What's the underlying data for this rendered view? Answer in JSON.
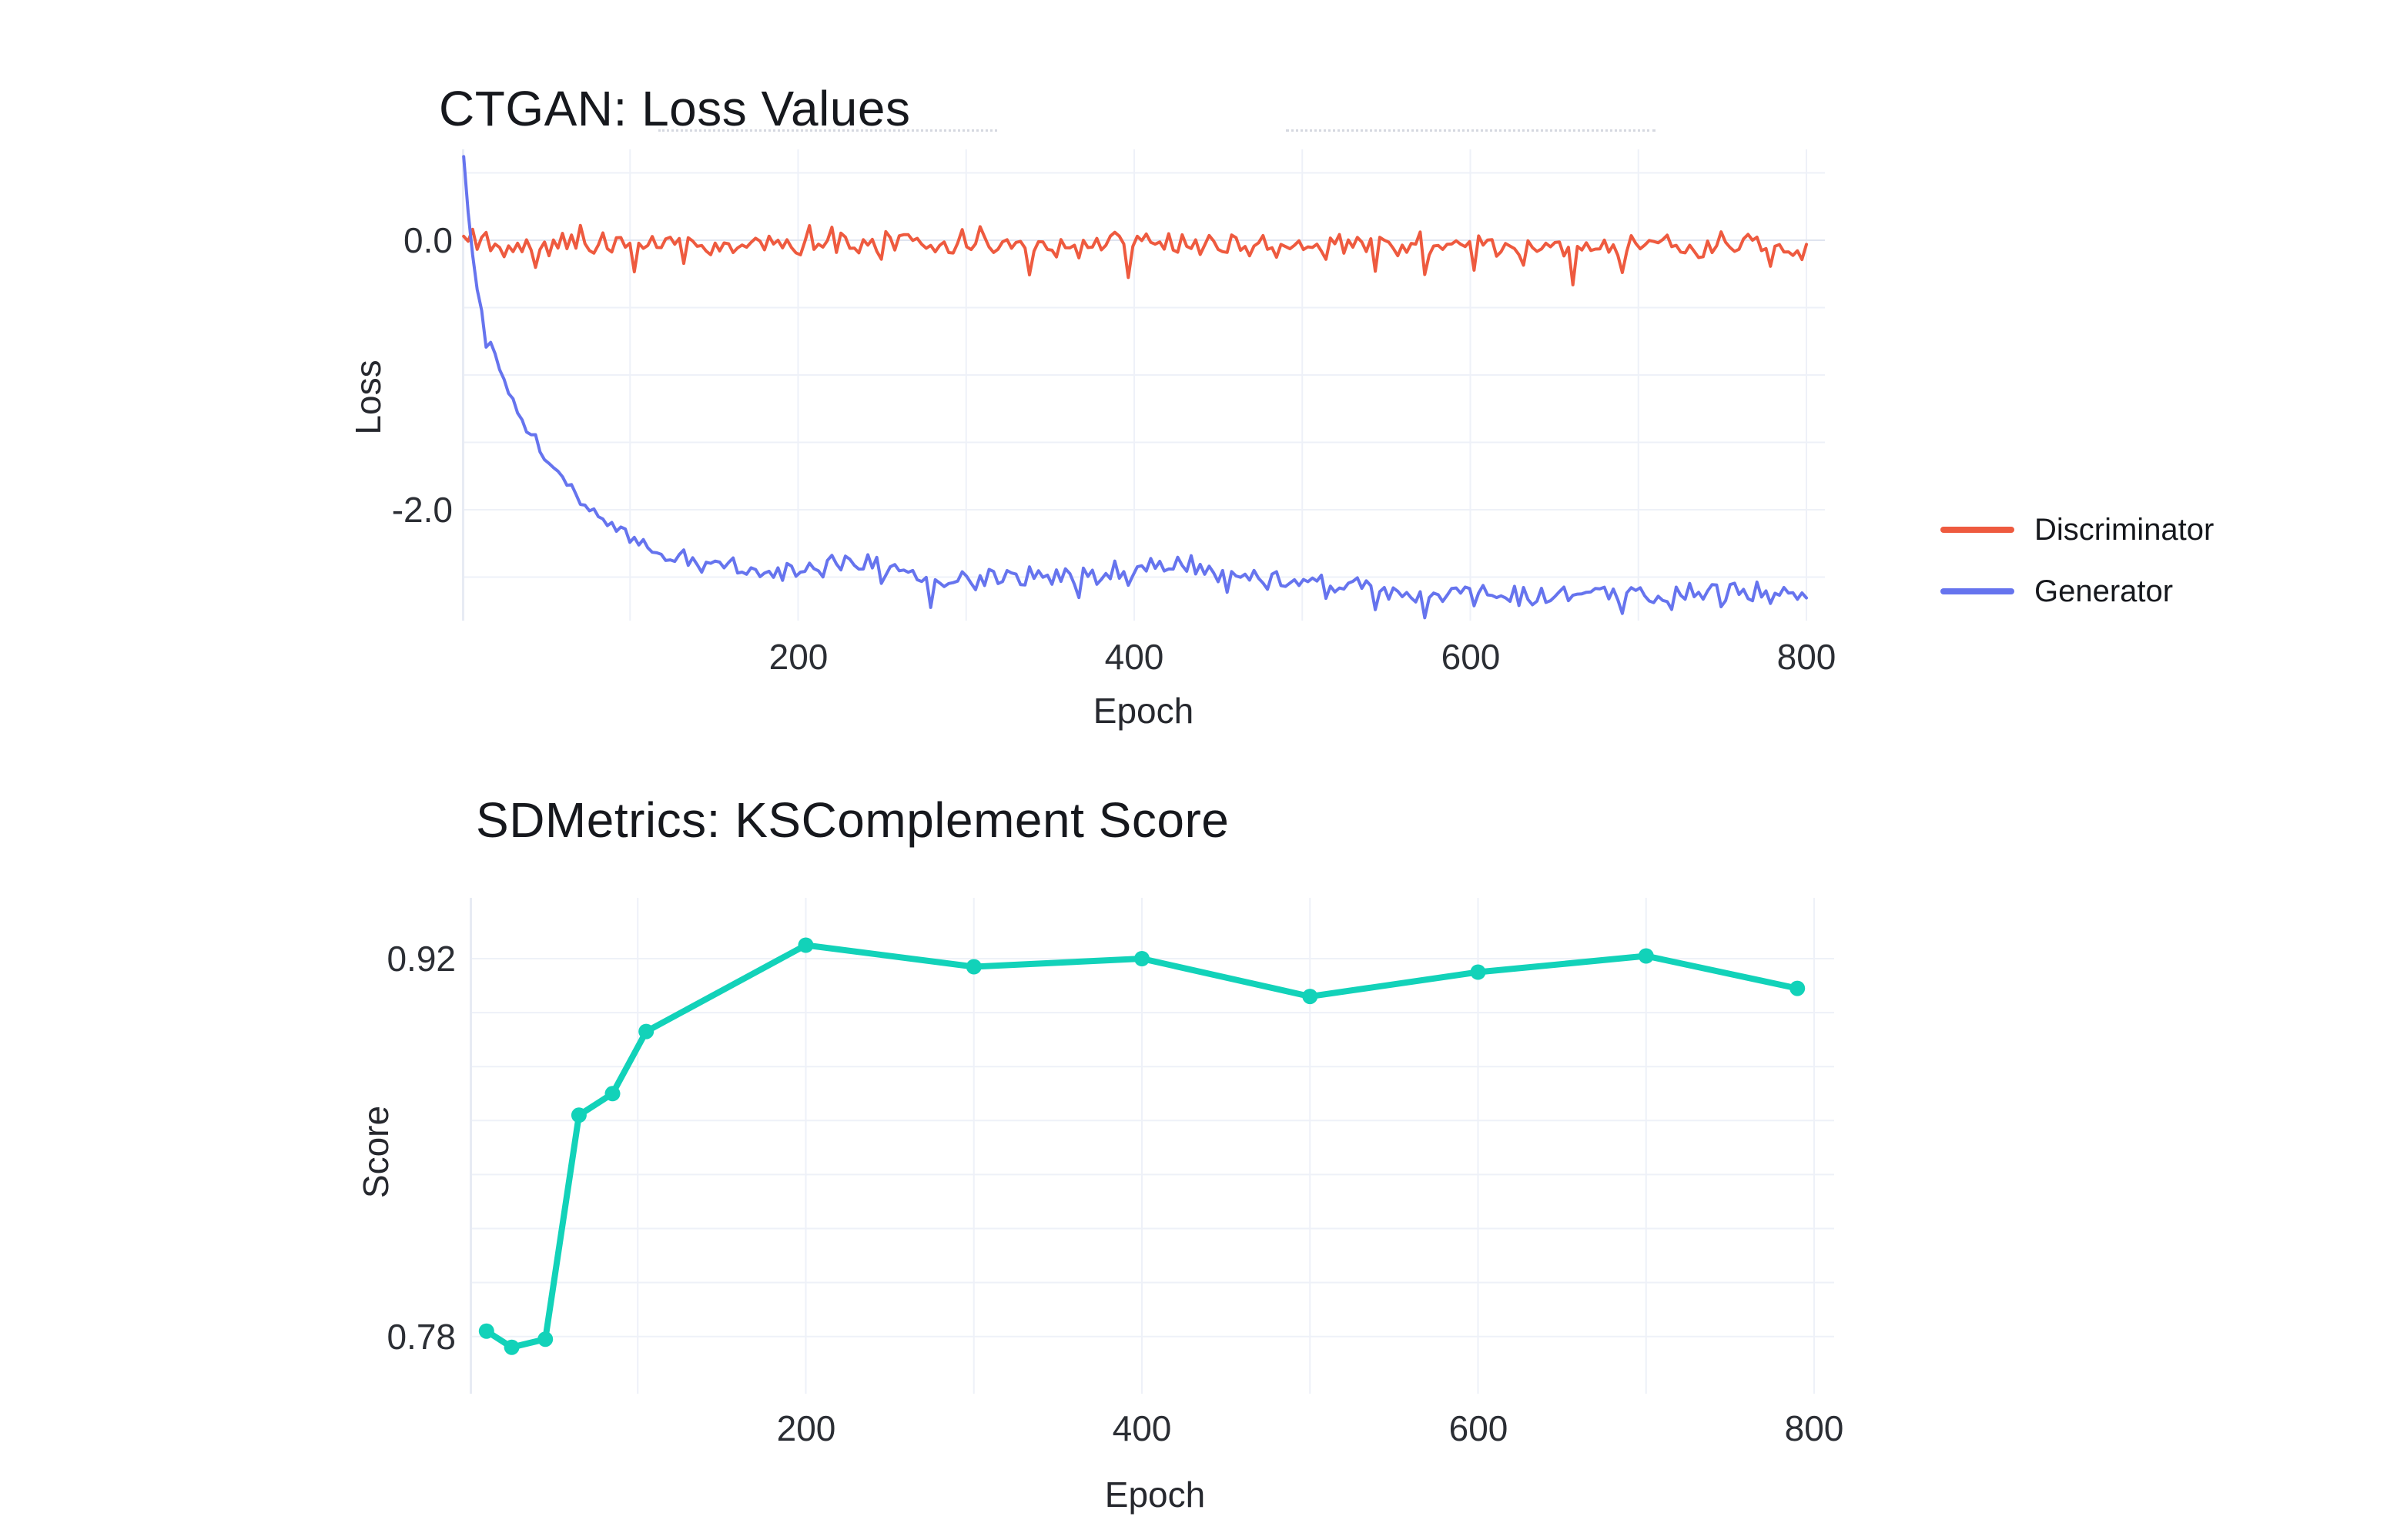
{
  "page": {
    "background": "#ffffff"
  },
  "chart_data": [
    {
      "type": "line",
      "title": "CTGAN: Loss Values",
      "xlabel": "Epoch",
      "ylabel": "Loss",
      "x_tick_labels": [
        "200",
        "400",
        "600",
        "800"
      ],
      "x_tick_values": [
        200,
        400,
        600,
        800
      ],
      "y_tick_labels": [
        "0.0",
        "-2.0"
      ],
      "y_tick_values": [
        0.0,
        -2.0
      ],
      "xlim": [
        0,
        810
      ],
      "ylim": [
        -2.82,
        0.67
      ],
      "x_grid": [
        100,
        200,
        300,
        400,
        500,
        600,
        700,
        800
      ],
      "y_grid": [
        0.5,
        0,
        -0.5,
        -1,
        -1.5,
        -2,
        -2.5
      ],
      "zeroline": 0,
      "grid": true,
      "legend_position": "right",
      "series": [
        {
          "name": "Discriminator",
          "color": "#ee5a3f",
          "style": "noisy-line",
          "trend": [
            [
              1,
              0.05
            ],
            [
              20,
              -0.03
            ],
            [
              400,
              -0.03
            ],
            [
              800,
              -0.05
            ]
          ],
          "noise_amplitude": 0.06,
          "spike_amplitude": 0.2,
          "n_points": 300,
          "seed": 11
        },
        {
          "name": "Generator",
          "color": "#6674ee",
          "style": "noisy-line",
          "trend": [
            [
              1,
              0.62
            ],
            [
              4,
              0.15
            ],
            [
              8,
              -0.3
            ],
            [
              14,
              -0.62
            ],
            [
              20,
              -0.88
            ],
            [
              28,
              -1.12
            ],
            [
              38,
              -1.4
            ],
            [
              48,
              -1.6
            ],
            [
              58,
              -1.74
            ],
            [
              70,
              -1.92
            ],
            [
              80,
              -2.04
            ],
            [
              95,
              -2.14
            ],
            [
              110,
              -2.28
            ],
            [
              130,
              -2.37
            ],
            [
              160,
              -2.44
            ],
            [
              200,
              -2.46
            ],
            [
              240,
              -2.38
            ],
            [
              265,
              -2.48
            ],
            [
              300,
              -2.53
            ],
            [
              340,
              -2.49
            ],
            [
              380,
              -2.51
            ],
            [
              415,
              -2.4
            ],
            [
              445,
              -2.47
            ],
            [
              475,
              -2.53
            ],
            [
              510,
              -2.54
            ],
            [
              540,
              -2.58
            ],
            [
              570,
              -2.63
            ],
            [
              600,
              -2.6
            ],
            [
              640,
              -2.64
            ],
            [
              680,
              -2.6
            ],
            [
              720,
              -2.63
            ],
            [
              760,
              -2.6
            ],
            [
              800,
              -2.6
            ]
          ],
          "noise_amplitude": 0.055,
          "noise_amplitude_start": 0.012,
          "noise_ramp_epoch": 150,
          "spike_amplitude": 0.13,
          "n_points": 300,
          "seed": 5
        }
      ]
    },
    {
      "type": "line+markers",
      "title": "SDMetrics: KSComplement Score",
      "xlabel": "Epoch",
      "ylabel": "Score",
      "x_tick_labels": [
        "200",
        "400",
        "600",
        "800"
      ],
      "x_tick_values": [
        200,
        400,
        600,
        800
      ],
      "y_tick_labels": [
        "0.92",
        "0.78"
      ],
      "y_tick_values": [
        0.92,
        0.78
      ],
      "xlim": [
        0,
        810
      ],
      "ylim": [
        0.759,
        0.942
      ],
      "x_grid": [
        100,
        200,
        300,
        400,
        500,
        600,
        700,
        800
      ],
      "y_grid": [
        0.92,
        0.9,
        0.88,
        0.86,
        0.84,
        0.82,
        0.8,
        0.78
      ],
      "grid": true,
      "series": [
        {
          "name": "KSComplement",
          "color": "#12d2b9",
          "style": "line+markers",
          "x": [
            10,
            25,
            45,
            65,
            85,
            105,
            200,
            300,
            400,
            500,
            600,
            700,
            790
          ],
          "y": [
            0.782,
            0.776,
            0.779,
            0.862,
            0.87,
            0.893,
            0.925,
            0.917,
            0.92,
            0.906,
            0.915,
            0.921,
            0.909
          ]
        }
      ]
    }
  ]
}
